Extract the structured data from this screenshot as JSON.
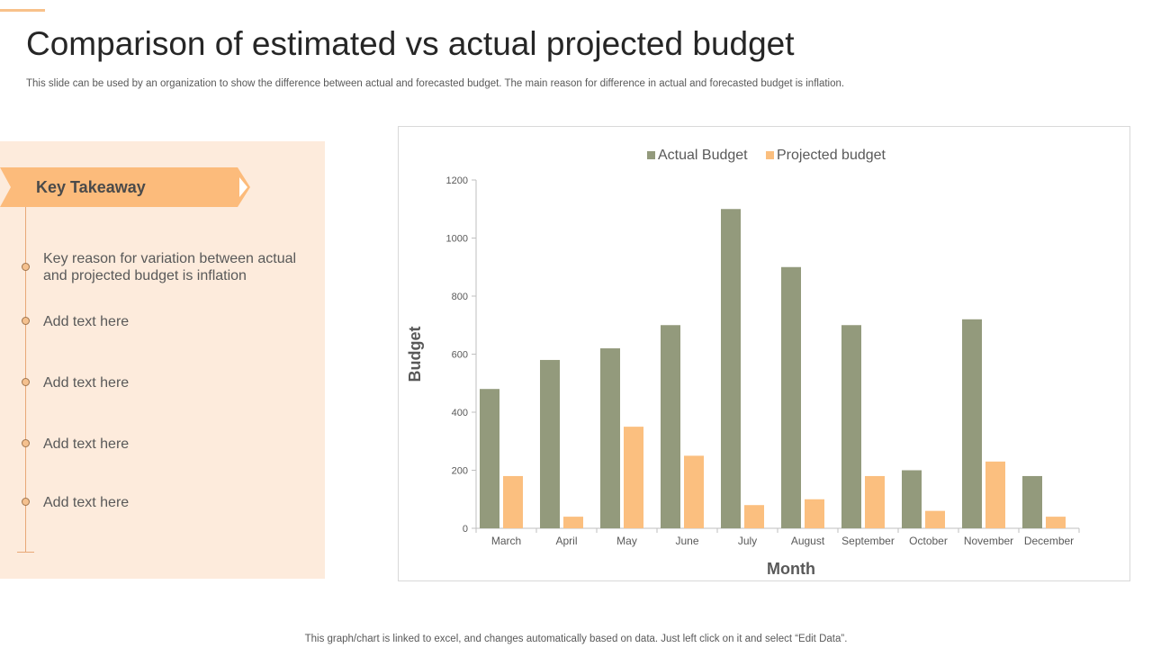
{
  "title": "Comparison of estimated vs actual projected budget",
  "subtitle": "This slide can be used by an organization to show the difference between actual and forecasted budget. The main reason for difference in actual and forecasted budget is inflation.",
  "takeaway": {
    "heading": "Key Takeaway",
    "items": [
      "Key reason for variation between actual and projected budget is inflation",
      "Add text here",
      "Add text here",
      "Add text here",
      "Add text here"
    ]
  },
  "footer": "This graph/chart is linked to excel,  and changes automatically based on data. Just left click on it and select “Edit Data”.",
  "colors": {
    "actual": "#939a7c",
    "projected": "#fbbf7f",
    "accent": "#f8c18a",
    "panel": "#fdebdc"
  },
  "chart_data": {
    "type": "bar",
    "categories": [
      "March",
      "April",
      "May",
      "June",
      "July",
      "August",
      "September",
      "October",
      "November",
      "December"
    ],
    "series": [
      {
        "name": "Actual Budget",
        "values": [
          480,
          580,
          620,
          700,
          1100,
          900,
          700,
          200,
          720,
          180
        ]
      },
      {
        "name": "Projected budget",
        "values": [
          180,
          40,
          350,
          250,
          80,
          100,
          180,
          60,
          230,
          40
        ]
      }
    ],
    "xlabel": "Month",
    "ylabel": "Budget",
    "ylim": [
      0,
      1200
    ],
    "yticks": [
      "0",
      "200",
      "400",
      "600",
      "800",
      "1000",
      "1200"
    ],
    "legend": "top",
    "grid": false
  }
}
